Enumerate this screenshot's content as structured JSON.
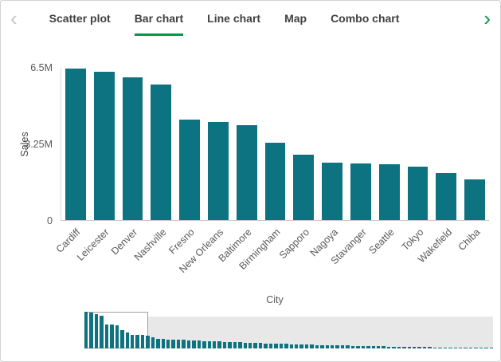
{
  "tabs": {
    "prev_label": "‹",
    "next_label": "›",
    "items": [
      {
        "label": "Scatter plot",
        "active": false
      },
      {
        "label": "Bar chart",
        "active": true
      },
      {
        "label": "Line chart",
        "active": false
      },
      {
        "label": "Map",
        "active": false
      },
      {
        "label": "Combo chart",
        "active": false
      }
    ]
  },
  "colors": {
    "accent_green": "#009845",
    "bar_teal": "#0e7380",
    "track_gray": "#e8e8e8"
  },
  "chart_data": {
    "type": "bar",
    "title": "",
    "xlabel": "City",
    "ylabel": "Sales",
    "value_unit": "M",
    "ylim": [
      0,
      6.5
    ],
    "grid": false,
    "legend": "none",
    "ytick_values": [
      0,
      3.25,
      6.5
    ],
    "ytick_labels": [
      "0",
      "3.25M",
      "6.5M"
    ],
    "categories": [
      "Cardiff",
      "Leicester",
      "Denver",
      "Nashville",
      "Fresno",
      "New Orleans",
      "Baltimore",
      "Birmingham",
      "Sapporo",
      "Nagoya",
      "Stavanger",
      "Seattle",
      "Tokyo",
      "Wakefield",
      "Chiba"
    ],
    "values": [
      6.45,
      6.32,
      6.1,
      5.8,
      4.3,
      4.2,
      4.05,
      3.3,
      2.8,
      2.45,
      2.4,
      2.38,
      2.28,
      2.0,
      1.72
    ],
    "bar_color": "#0e7380",
    "overview": {
      "description": "mini scroll chart of full dataset with viewport window",
      "values": [
        6.5,
        6.3,
        6.1,
        5.8,
        4.3,
        4.2,
        4.05,
        3.3,
        2.8,
        2.45,
        2.4,
        2.38,
        2.28,
        2.0,
        1.72,
        1.66,
        1.62,
        1.58,
        1.54,
        1.5,
        1.46,
        1.42,
        1.38,
        1.34,
        1.3,
        1.26,
        1.22,
        1.18,
        1.14,
        1.1,
        1.07,
        1.04,
        1.01,
        0.98,
        0.95,
        0.92,
        0.89,
        0.86,
        0.83,
        0.8,
        0.77,
        0.74,
        0.71,
        0.68,
        0.65,
        0.62,
        0.6,
        0.58,
        0.56,
        0.54,
        0.52,
        0.5,
        0.48,
        0.46,
        0.44,
        0.42,
        0.4,
        0.38,
        0.36,
        0.34,
        0.32,
        0.3,
        0.28,
        0.26,
        0.25,
        0.24,
        0.23,
        0.22,
        0.21,
        0.2,
        0.19,
        0.18,
        0.17,
        0.16,
        0.15,
        0.14,
        0.13,
        0.12,
        0.11,
        0.1
      ],
      "window_start_frac": 0,
      "window_end_frac": 0.155
    }
  }
}
